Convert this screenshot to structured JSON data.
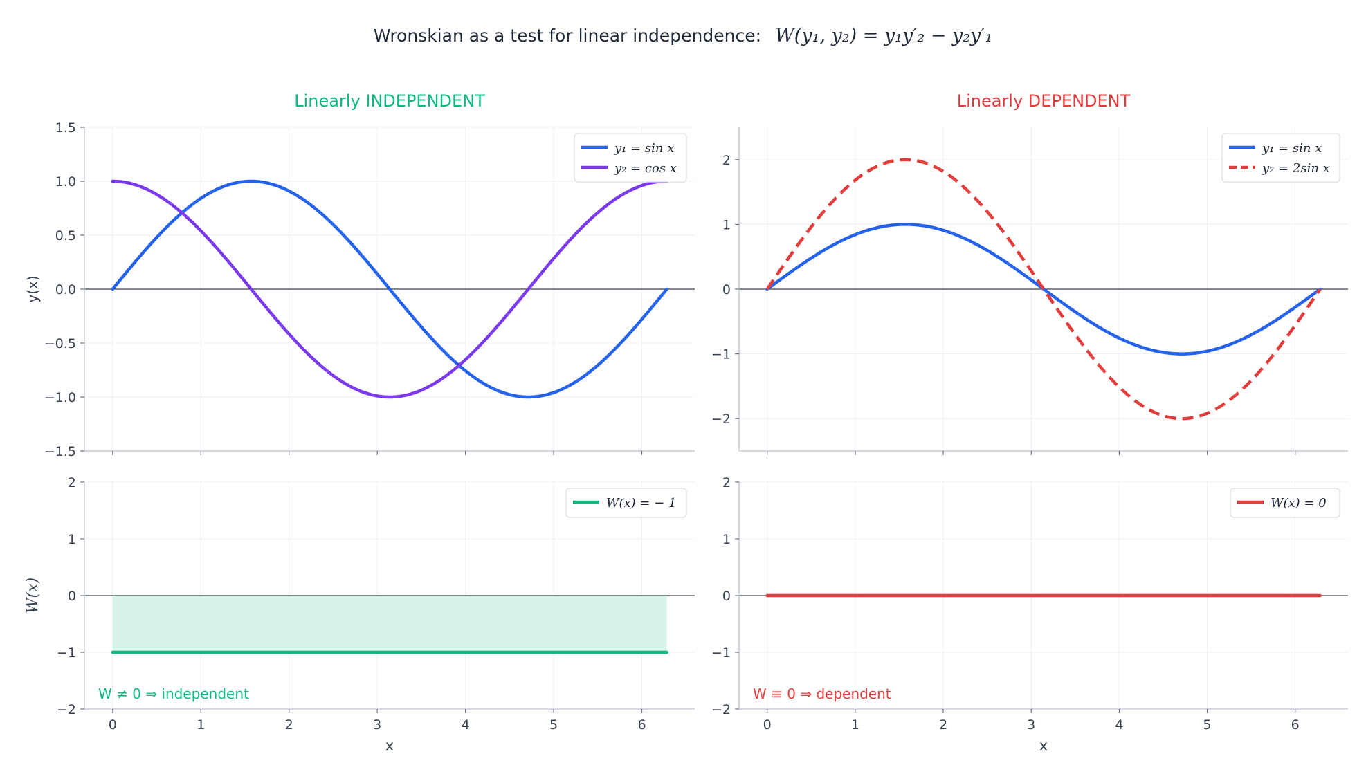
{
  "figure": {
    "title_prefix": "Wronskian as a test for linear independence:",
    "title_math": "W(y₁, y₂) = y₁y′₂ − y₂y′₁"
  },
  "colors": {
    "blue": "#2563eb",
    "purple": "#7c3aed",
    "red": "#e23d3d",
    "darkred": "#b91c1c",
    "green": "#10b981",
    "greenfill": "#d8f3ea",
    "axis": "#c7cdd9",
    "grid": "#eef0f4",
    "zero": "#374151"
  },
  "chart_data": [
    {
      "id": "top-left",
      "type": "line",
      "title": "Linearly INDEPENDENT",
      "title_color": "#10b981",
      "xlabel": "",
      "ylabel": "y(x)",
      "xlim": [
        -0.32,
        6.6
      ],
      "ylim": [
        -1.5,
        1.5
      ],
      "xticks": [
        0,
        1,
        2,
        3,
        4,
        5,
        6
      ],
      "show_xtick_labels": false,
      "yticks": [
        -1.5,
        -1.0,
        -0.5,
        0.0,
        0.5,
        1.0,
        1.5
      ],
      "ytick_labels": [
        "−1.5",
        "−1.0",
        "−0.5",
        "0.0",
        "0.5",
        "1.0",
        "1.5"
      ],
      "x_range": [
        0,
        6.2832
      ],
      "legend_position": "top-right",
      "series": [
        {
          "name": "y₁ = sin x",
          "function": "sin",
          "amplitude": 1,
          "color": "#2563eb",
          "dashed": false
        },
        {
          "name": "y₂ = cos x",
          "function": "cos",
          "amplitude": 1,
          "color": "#7c3aed",
          "dashed": false
        }
      ]
    },
    {
      "id": "top-right",
      "type": "line",
      "title": "Linearly DEPENDENT",
      "title_color": "#e23d3d",
      "xlabel": "",
      "ylabel": "",
      "xlim": [
        -0.32,
        6.6
      ],
      "ylim": [
        -2.5,
        2.5
      ],
      "xticks": [
        0,
        1,
        2,
        3,
        4,
        5,
        6
      ],
      "show_xtick_labels": false,
      "yticks": [
        -2,
        -1,
        0,
        1,
        2
      ],
      "ytick_labels": [
        "−2",
        "−1",
        "0",
        "1",
        "2"
      ],
      "x_range": [
        0,
        6.2832
      ],
      "legend_position": "top-right",
      "series": [
        {
          "name": "y₁ = sin x",
          "function": "sin",
          "amplitude": 1,
          "color": "#2563eb",
          "dashed": false
        },
        {
          "name": "y₂ = 2sin x",
          "function": "sin",
          "amplitude": 2,
          "color": "#e23d3d",
          "dashed": true
        }
      ]
    },
    {
      "id": "bottom-left",
      "type": "line",
      "title": "",
      "xlabel": "x",
      "ylabel": "W(x)",
      "xlim": [
        -0.32,
        6.6
      ],
      "ylim": [
        -2,
        2
      ],
      "xticks": [
        0,
        1,
        2,
        3,
        4,
        5,
        6
      ],
      "show_xtick_labels": true,
      "yticks": [
        -2,
        -1,
        0,
        1,
        2
      ],
      "ytick_labels": [
        "−2",
        "−1",
        "0",
        "1",
        "2"
      ],
      "x_range": [
        0,
        6.2832
      ],
      "legend_position": "top-right",
      "fill_to_zero": true,
      "annotation": "W ≠ 0  ⇒  independent",
      "annotation_color": "#10b981",
      "series": [
        {
          "name": "W(x) = − 1",
          "function": "const",
          "amplitude": -1,
          "color": "#10b981",
          "dashed": false
        }
      ]
    },
    {
      "id": "bottom-right",
      "type": "line",
      "title": "",
      "xlabel": "x",
      "ylabel": "",
      "xlim": [
        -0.32,
        6.6
      ],
      "ylim": [
        -2,
        2
      ],
      "xticks": [
        0,
        1,
        2,
        3,
        4,
        5,
        6
      ],
      "show_xtick_labels": true,
      "yticks": [
        -2,
        -1,
        0,
        1,
        2
      ],
      "ytick_labels": [
        "−2",
        "−1",
        "0",
        "1",
        "2"
      ],
      "x_range": [
        0,
        6.2832
      ],
      "legend_position": "top-right",
      "fill_to_zero": false,
      "annotation": "W ≡ 0  ⇒  dependent",
      "annotation_color": "#e23d3d",
      "series": [
        {
          "name": "W(x) = 0",
          "function": "const",
          "amplitude": 0,
          "color": "#e23d3d",
          "dashed": false
        }
      ]
    }
  ]
}
